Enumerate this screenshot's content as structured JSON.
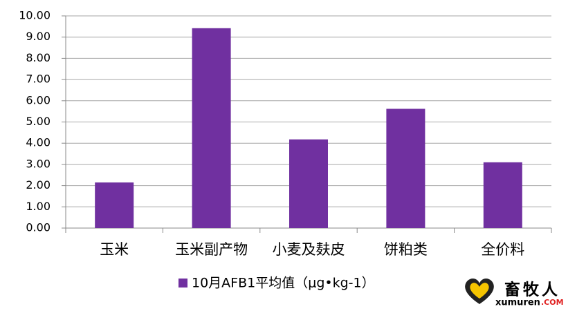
{
  "chart_data": {
    "type": "bar",
    "categories": [
      "玉米",
      "玉米副产物",
      "小麦及麸皮",
      "饼粕类",
      "全价料"
    ],
    "series": [
      {
        "name": "10月AFB1平均值（μg•kg-1）",
        "color": "#7030a0",
        "values": [
          2.15,
          9.42,
          4.18,
          5.62,
          3.1
        ]
      }
    ],
    "ylim": [
      0,
      10
    ],
    "yticks": [
      {
        "value": 0,
        "label": "0.00"
      },
      {
        "value": 1,
        "label": "1.00"
      },
      {
        "value": 2,
        "label": "2.00"
      },
      {
        "value": 3,
        "label": "3.00"
      },
      {
        "value": 4,
        "label": "4.00"
      },
      {
        "value": 5,
        "label": "5.00"
      },
      {
        "value": 6,
        "label": "6.00"
      },
      {
        "value": 7,
        "label": "7.00"
      },
      {
        "value": 8,
        "label": "8.00"
      },
      {
        "value": 9,
        "label": "9.00"
      },
      {
        "value": 10,
        "label": "10.00"
      }
    ],
    "grid": true,
    "legend": "bottom"
  },
  "watermark": {
    "logo_text": "畜牧人",
    "site_name": "xumuren",
    "site_suffix": ".COM"
  }
}
